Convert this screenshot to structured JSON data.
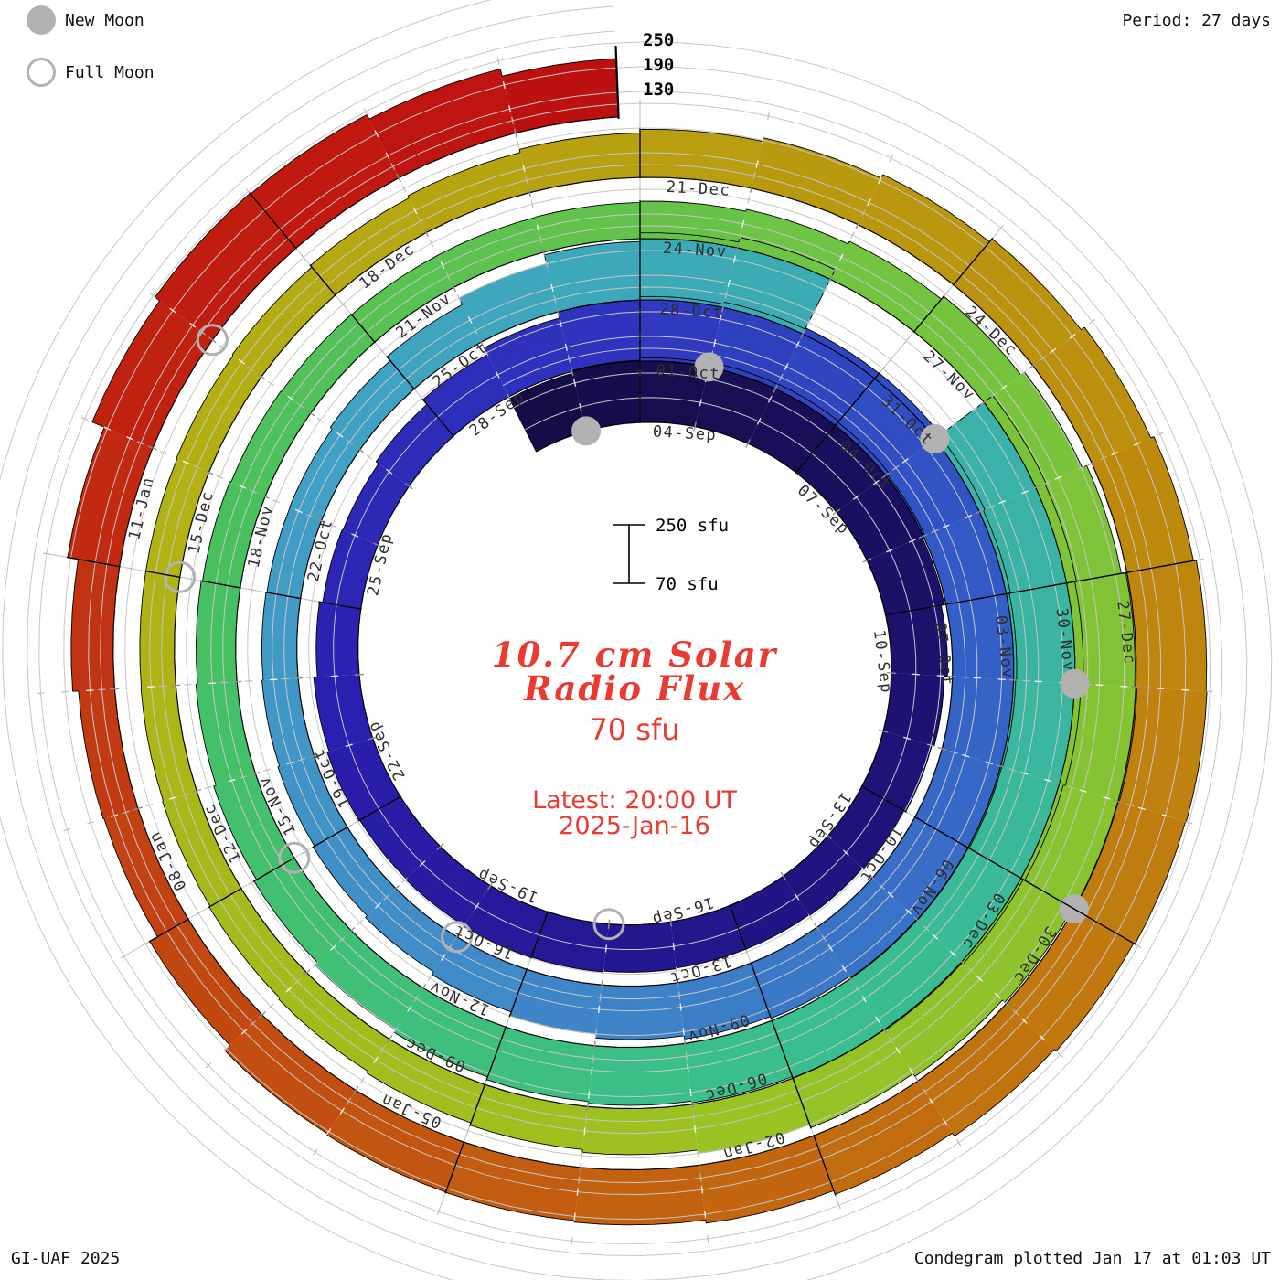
{
  "legend": {
    "new_moon": "New Moon",
    "full_moon": "Full Moon"
  },
  "header": {
    "period": "Period: 27 days"
  },
  "footer": {
    "left": "GI-UAF 2025",
    "right": "Condegram plotted Jan 17 at 01:03 UT"
  },
  "center": {
    "title_line1": "10.7 cm Solar",
    "title_line2": "Radio Flux",
    "flux_now": "70 sfu",
    "latest_line1": "Latest: 20:00 UT",
    "latest_line2": "2025-Jan-16"
  },
  "scale_bar": {
    "top": "250 sfu",
    "bottom": "70 sfu"
  },
  "radial_axis": {
    "labels": [
      "250",
      "190",
      "130"
    ]
  },
  "chart_data": {
    "type": "spiral_bar_condegram",
    "title": "10.7 cm Solar Radio Flux",
    "period_days": 27,
    "start_date": "2024-09-02",
    "end_label": "2025-01-16 20:00 UT",
    "flux_base_sfu": 70,
    "radial_range_sfu": [
      70,
      250
    ],
    "radial_tick_values_sfu": [
      130,
      190,
      250
    ],
    "tick_label_step_days": 3,
    "tick_labels": [
      "04-Sep",
      "07-Sep",
      "10-Sep",
      "13-Sep",
      "16-Sep",
      "19-Sep",
      "22-Sep",
      "25-Sep",
      "28-Sep",
      "01-Oct",
      "04-Oct",
      "07-Oct",
      "10-Oct",
      "13-Oct",
      "16-Oct",
      "19-Oct",
      "22-Oct",
      "25-Oct",
      "28-Oct",
      "31-Oct",
      "03-Nov",
      "06-Nov",
      "09-Nov",
      "12-Nov",
      "15-Nov",
      "18-Nov",
      "21-Nov",
      "24-Nov",
      "27-Nov",
      "30-Nov",
      "03-Dec",
      "06-Dec",
      "09-Dec",
      "12-Dec",
      "15-Dec",
      "18-Dec",
      "21-Dec",
      "24-Dec",
      "27-Dec",
      "30-Dec",
      "02-Jan",
      "05-Jan",
      "08-Jan",
      "11-Jan"
    ],
    "daily_sfu": [
      214,
      221,
      227,
      231,
      232,
      229,
      223,
      215,
      207,
      199,
      193,
      188,
      185,
      183,
      183,
      185,
      187,
      188,
      186,
      184,
      186,
      181,
      172,
      164,
      162,
      170,
      185,
      203,
      218,
      227,
      232,
      235,
      236,
      233,
      229,
      226,
      224,
      222,
      220,
      217,
      213,
      208,
      200,
      190,
      180,
      172,
      166,
      162,
      158,
      155,
      153,
      154,
      160,
      172,
      190,
      212,
      233,
      245,
      null,
      null,
      246,
      243,
      239,
      234,
      229,
      225,
      221,
      218,
      215,
      211,
      206,
      199,
      191,
      183,
      176,
      170,
      166,
      163,
      160,
      158,
      157,
      157,
      158,
      161,
      166,
      173,
      182,
      193,
      205,
      216,
      222,
      220,
      214,
      206,
      198,
      190,
      182,
      175,
      169,
      164,
      160,
      157,
      155,
      154,
      154,
      156,
      159,
      164,
      170,
      178,
      187,
      196,
      206,
      216,
      226,
      234,
      241,
      243,
      241,
      237,
      231,
      222,
      212,
      204,
      200,
      199,
      196,
      178,
      156,
      158,
      172,
      198,
      230,
      244,
      242,
      230,
      212
    ],
    "last_day_fraction": 0.83,
    "data_gaps": [
      "2024-10-30",
      "2024-10-31"
    ],
    "new_moon_day_offsets": [
      1,
      30,
      60,
      90,
      119
    ],
    "full_moon_day_offsets": [
      16,
      45,
      74,
      104,
      133
    ],
    "moon_color": "#b2b2b2",
    "accent_red": "#e93b32",
    "grid_color": "#c7c7c7",
    "label_color": "#2e2e2e",
    "color_stops": [
      [
        0.0,
        "#150d45"
      ],
      [
        0.045,
        "#1a1060"
      ],
      [
        0.09,
        "#1f147f"
      ],
      [
        0.155,
        "#2a1fae"
      ],
      [
        0.21,
        "#2e35bd"
      ],
      [
        0.26,
        "#3360c6"
      ],
      [
        0.315,
        "#3f85c8"
      ],
      [
        0.375,
        "#41a0c6"
      ],
      [
        0.43,
        "#3aafb0"
      ],
      [
        0.5,
        "#3abf8b"
      ],
      [
        0.565,
        "#47c05f"
      ],
      [
        0.625,
        "#72c441"
      ],
      [
        0.7,
        "#9ac222"
      ],
      [
        0.765,
        "#b2b214"
      ],
      [
        0.83,
        "#bb930e"
      ],
      [
        0.875,
        "#c1770f"
      ],
      [
        0.91,
        "#c25c10"
      ],
      [
        0.94,
        "#c24113"
      ],
      [
        0.97,
        "#c02010"
      ],
      [
        1.0,
        "#bd0f10"
      ]
    ]
  }
}
